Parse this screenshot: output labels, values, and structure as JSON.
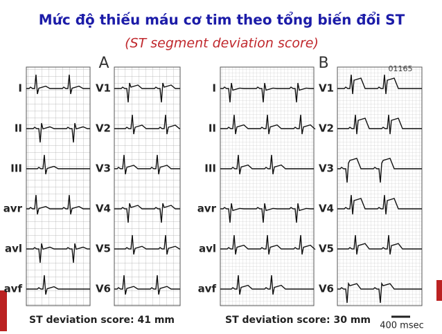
{
  "header": {
    "title": "Mức độ thiếu máu cơ tim theo tổng biến đổi ST",
    "subtitle": "(ST segment deviation score)"
  },
  "panels": [
    {
      "label": "A",
      "limb_leads": [
        "I",
        "II",
        "III",
        "avr",
        "avl",
        "avf"
      ],
      "chest_leads": [
        "V1",
        "V2",
        "V3",
        "V4",
        "V5",
        "V6"
      ],
      "score": "ST deviation score: 41 mm"
    },
    {
      "label": "B",
      "id": "01165",
      "limb_leads": [
        "I",
        "II",
        "III",
        "avr",
        "avl",
        "avf"
      ],
      "chest_leads": [
        "V1",
        "V2",
        "V3",
        "V4",
        "V5",
        "V6"
      ],
      "score": "ST deviation score: 30 mm"
    }
  ],
  "scale_bar": "400 msec"
}
